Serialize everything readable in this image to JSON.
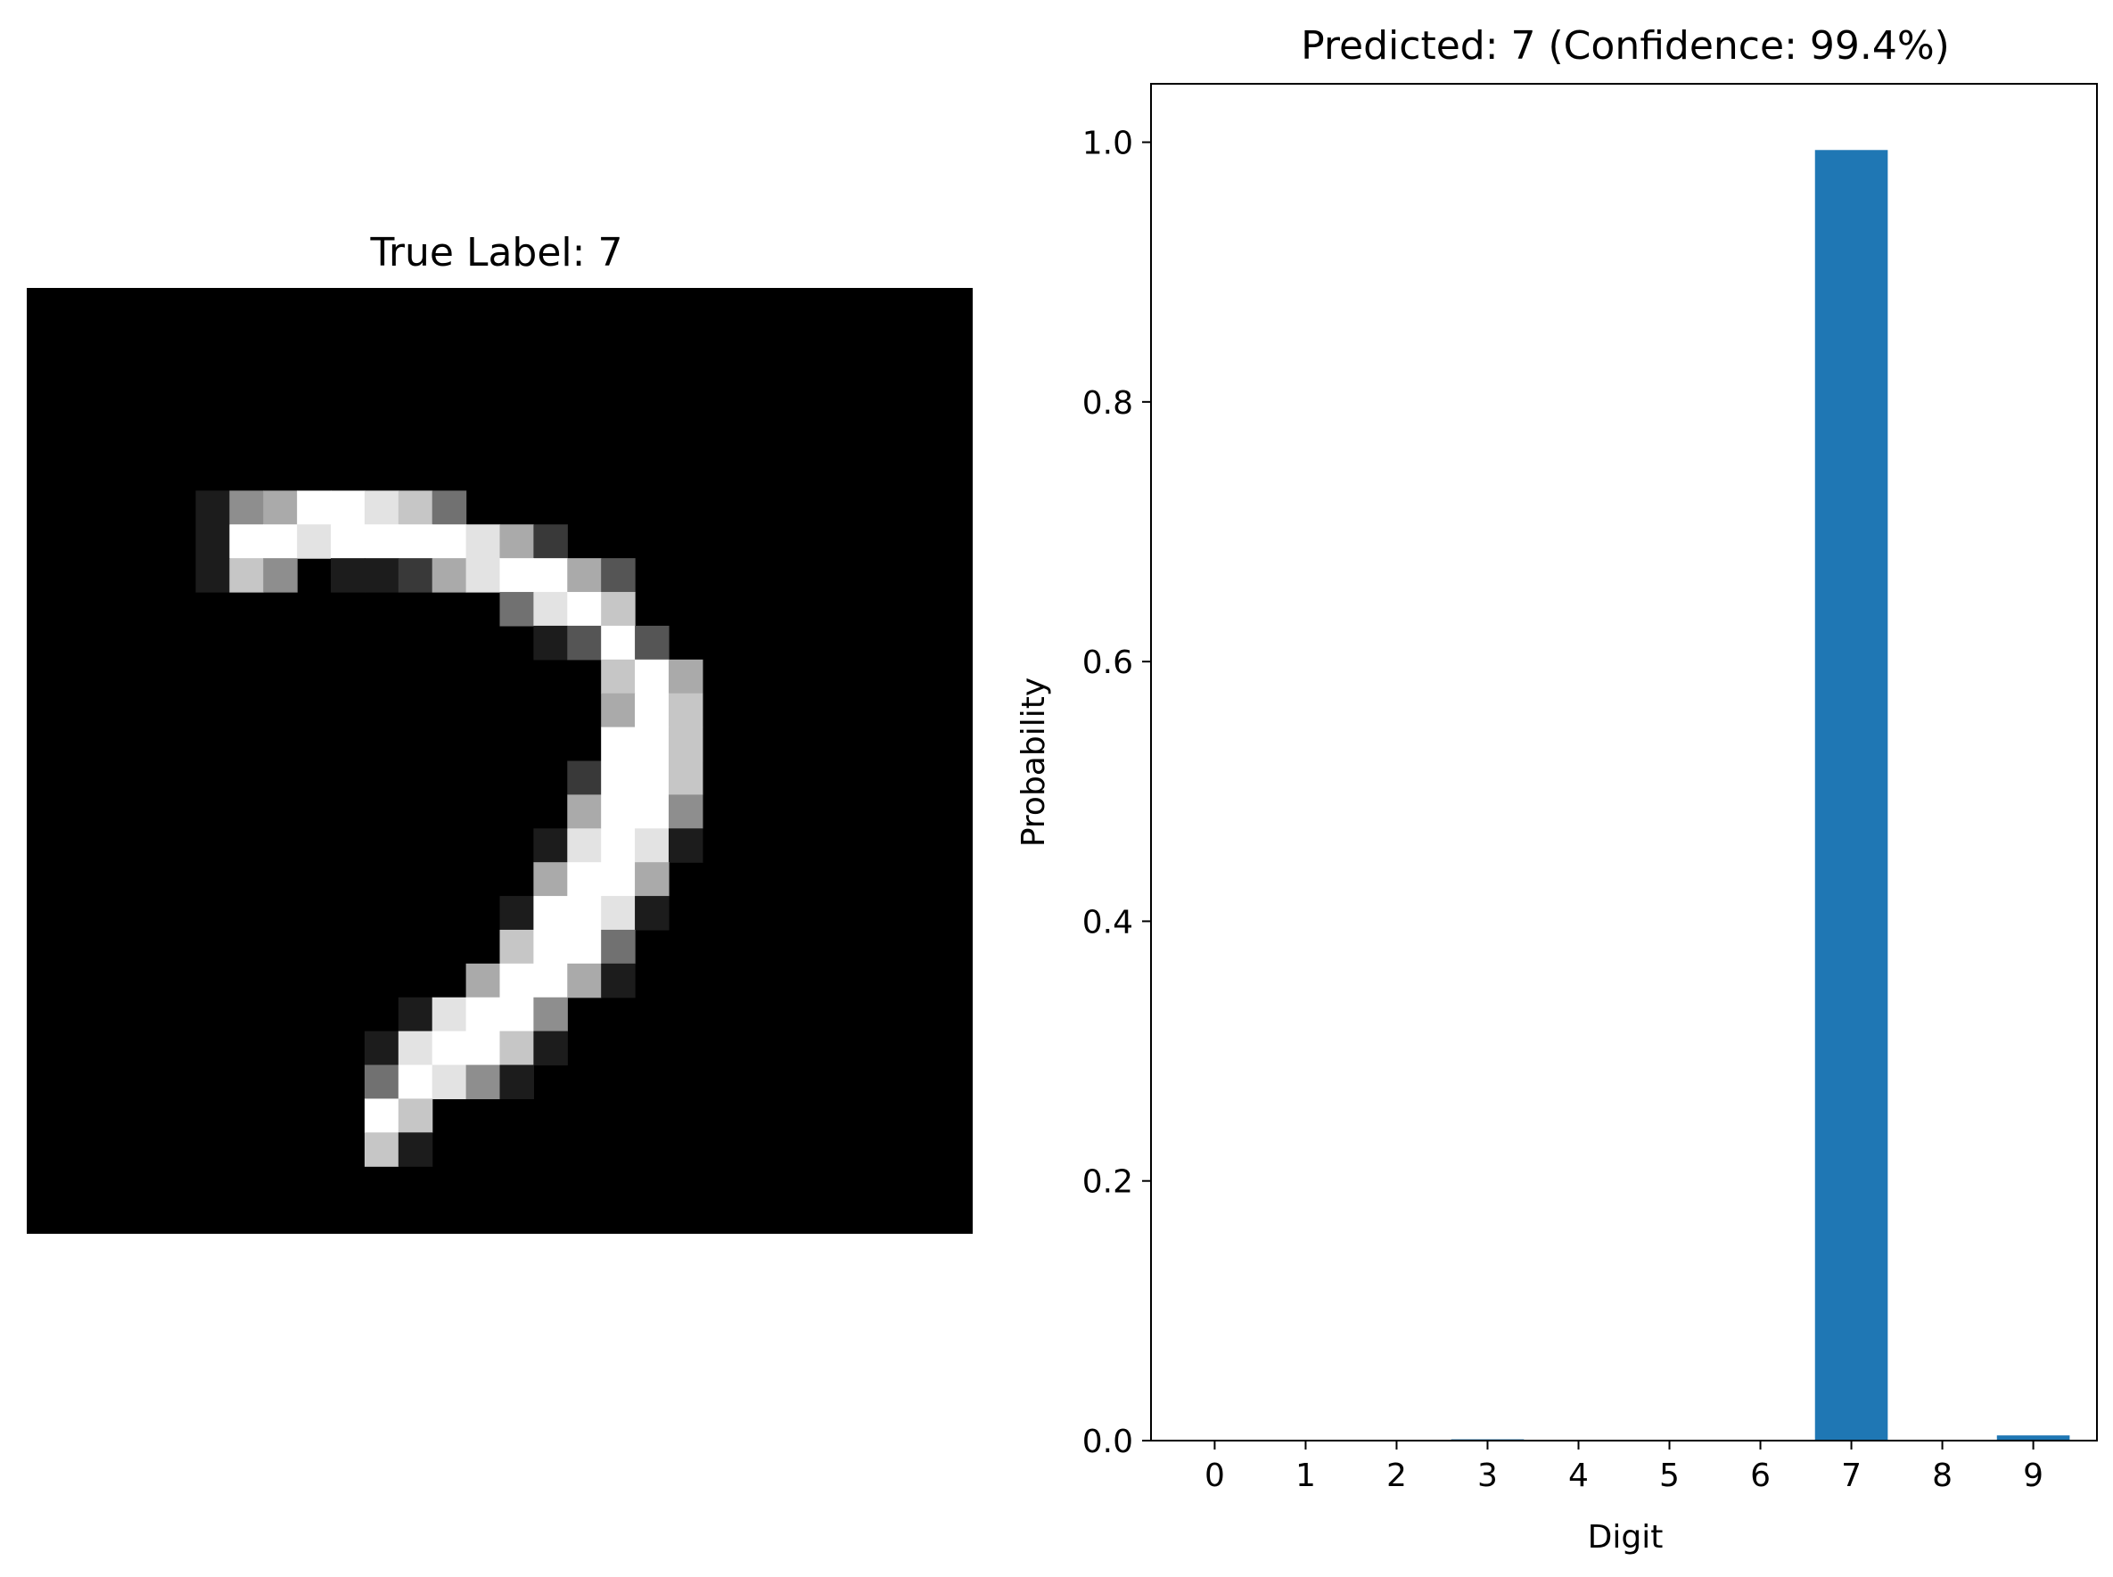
{
  "figure": {
    "left_panel": {
      "title": "True Label: 7",
      "image": {
        "kind": "grayscale-digit",
        "depicts": "handwritten digit 7",
        "background": "#000000"
      }
    }
  },
  "chart_data": {
    "type": "bar",
    "title": "Predicted: 7 (Confidence: 99.4%)",
    "xlabel": "Digit",
    "ylabel": "Probability",
    "categories": [
      "0",
      "1",
      "2",
      "3",
      "4",
      "5",
      "6",
      "7",
      "8",
      "9"
    ],
    "values": [
      0.0,
      0.0,
      0.0,
      0.001,
      0.0,
      0.0,
      0.0,
      0.994,
      0.0,
      0.004
    ],
    "ylim": [
      0,
      1.045
    ],
    "yticks": [
      0.0,
      0.2,
      0.4,
      0.6,
      0.8,
      1.0
    ],
    "ytick_labels": [
      "0.0",
      "0.2",
      "0.4",
      "0.6",
      "0.8",
      "1.0"
    ],
    "bar_color": "#1f77b4",
    "grid": false
  }
}
